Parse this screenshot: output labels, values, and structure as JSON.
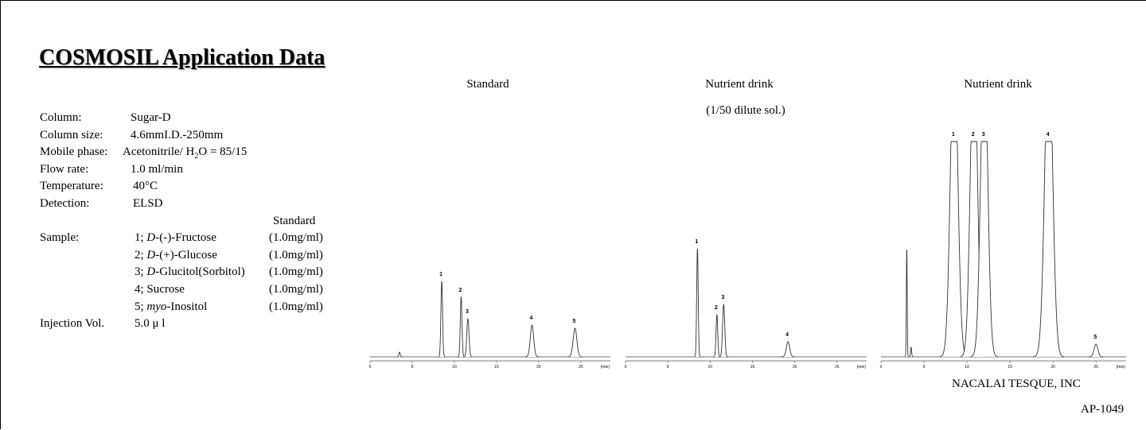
{
  "header": {
    "title": "COSMOSIL Application Data"
  },
  "conditions": [
    {
      "label": "Column:",
      "value": "Sugar-D"
    },
    {
      "label": "Column size:",
      "value": "4.6mmI.D.-250mm"
    },
    {
      "label": "Mobile phase:",
      "value": [
        "Acetonitrile/ H",
        "2",
        "O = 85/15"
      ]
    },
    {
      "label": "Flow rate:",
      "value": "1.0 ml/min"
    },
    {
      "label": "Temperature:",
      "value": "40°C"
    },
    {
      "label": "Detection:",
      "value": "ELSD"
    }
  ],
  "sample": {
    "label": "Sample:",
    "heading": "Standard",
    "items": [
      {
        "index": "1;",
        "prefix": "D",
        "name": "-(-)-Fructose",
        "conc": "(1.0mg/ml)"
      },
      {
        "index": "2;",
        "prefix": "D",
        "name": "-(+)-Glucose",
        "conc": "(1.0mg/ml)"
      },
      {
        "index": "3;",
        "prefix": "D",
        "name": "-Glucitol(Sorbitol)",
        "conc": "(1.0mg/ml)"
      },
      {
        "index": "4;",
        "prefix": null,
        "name": "Sucrose",
        "conc": "(1.0mg/ml)"
      },
      {
        "index": "5;",
        "prefix": "myo",
        "name": "-Inositol",
        "conc": "(1.0mg/ml)"
      }
    ]
  },
  "injection": {
    "label": "Injection Vol.",
    "value": "5.0 μ l"
  },
  "chromatograms": [
    {
      "title": "Standard",
      "xlim": [
        0,
        28.5
      ],
      "xticks": [
        0,
        5,
        10,
        15,
        20,
        25
      ],
      "x_unit": "(min)",
      "peaks": [
        {
          "label": null,
          "time": 3.5,
          "height": 6,
          "width": 0.08
        },
        {
          "label": "1",
          "time": 8.5,
          "height": 95,
          "width": 0.1
        },
        {
          "label": "2",
          "time": 10.8,
          "height": 75,
          "width": 0.1
        },
        {
          "label": "3",
          "time": 11.6,
          "height": 48,
          "width": 0.13
        },
        {
          "label": "4",
          "time": 19.2,
          "height": 40,
          "width": 0.2
        },
        {
          "label": "5",
          "time": 24.3,
          "height": 36,
          "width": 0.22
        }
      ]
    },
    {
      "title": "Nutrient drink",
      "subtitle": "(1/50 dilute sol.)",
      "xlim": [
        0,
        28.5
      ],
      "xticks": [
        0,
        5,
        10,
        15,
        20,
        25
      ],
      "x_unit": "(min)",
      "peaks": [
        {
          "label": "1",
          "time": 8.5,
          "height": 136,
          "width": 0.09
        },
        {
          "label": "2",
          "time": 10.8,
          "height": 53,
          "width": 0.1
        },
        {
          "label": "3",
          "time": 11.6,
          "height": 66,
          "width": 0.13
        },
        {
          "label": "4",
          "time": 19.2,
          "height": 19,
          "width": 0.2
        }
      ]
    },
    {
      "title": "Nutrient drink",
      "xlim": [
        0,
        28.5
      ],
      "xticks": [
        0,
        5,
        10,
        15,
        20,
        25
      ],
      "x_unit": "(min)",
      "peaks": [
        {
          "label": null,
          "time": 3.0,
          "height": 135,
          "width": 0.05
        },
        {
          "label": null,
          "time": 3.5,
          "height": 12,
          "width": 0.06
        },
        {
          "label": "1",
          "time": 8.5,
          "height": 400,
          "width": 0.42
        },
        {
          "label": "2",
          "time": 10.8,
          "height": 400,
          "width": 0.4
        },
        {
          "label": "3",
          "time": 12.0,
          "height": 400,
          "width": 0.4
        },
        {
          "label": "4",
          "time": 19.5,
          "height": 400,
          "width": 0.45
        },
        {
          "label": "5",
          "time": 25.0,
          "height": 16,
          "width": 0.22
        }
      ]
    }
  ],
  "footer": {
    "company": "NACALAI TESQUE, INC",
    "code": "AP-1049"
  }
}
